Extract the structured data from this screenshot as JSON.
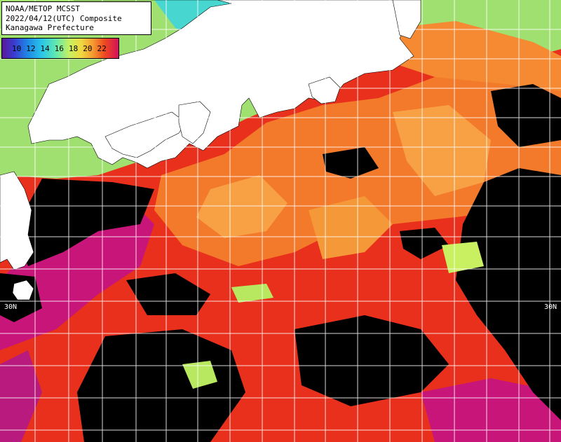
{
  "header": {
    "line1": "NOAA/METOP MCSST",
    "line2": "2022/04/12(UTC) Composite",
    "line3": "Kanagawa Prefecture"
  },
  "legend": {
    "ticks": [
      "10",
      "12",
      "14",
      "16",
      "18",
      "20",
      "22"
    ],
    "colors": [
      "#5a189a",
      "#1e88e5",
      "#29c5e8",
      "#5fe8b0",
      "#c8f060",
      "#f59a30",
      "#ee4a20",
      "#d4105a"
    ]
  },
  "grid": {
    "lat_label_left": "30N",
    "lat_label_right": "30N"
  },
  "map_colors": {
    "land": "#ffffff",
    "cloud": "#000000",
    "warm_red": "#e8301c",
    "orange": "#f27a2a",
    "magenta": "#c8157a",
    "light_orange": "#f7a044",
    "yellow_green": "#b8e860",
    "cyan": "#3ad0e0"
  }
}
